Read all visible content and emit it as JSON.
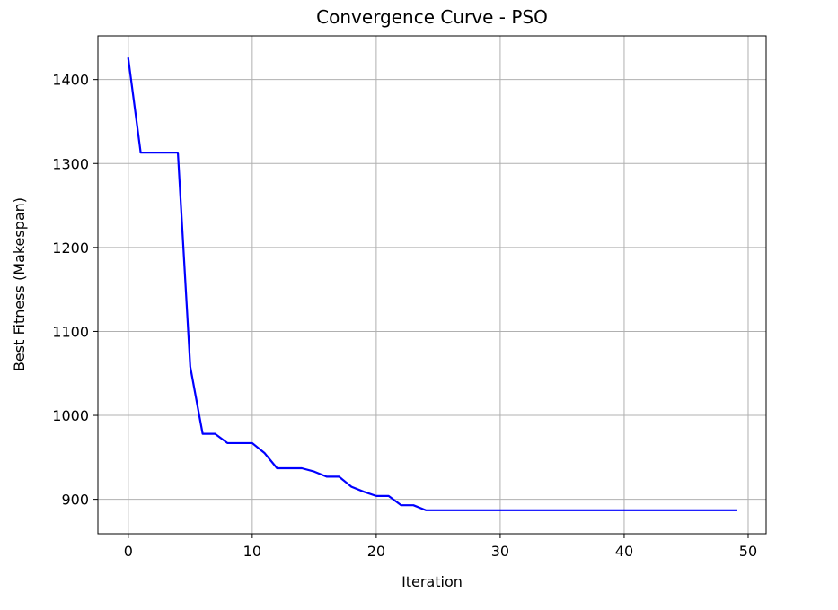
{
  "chart_data": {
    "type": "line",
    "title": "Convergence Curve - PSO",
    "xlabel": "Iteration",
    "ylabel": "Best Fitness (Makespan)",
    "xlim": [
      -2.45,
      51.45
    ],
    "ylim": [
      859,
      1452
    ],
    "xticks": [
      0,
      10,
      20,
      30,
      40,
      50
    ],
    "yticks": [
      900,
      1000,
      1100,
      1200,
      1300,
      1400
    ],
    "grid": true,
    "series": [
      {
        "color": "#0000ff",
        "x": [
          0,
          1,
          2,
          3,
          4,
          5,
          6,
          7,
          8,
          9,
          10,
          11,
          12,
          13,
          14,
          15,
          16,
          17,
          18,
          19,
          20,
          21,
          22,
          23,
          24,
          25,
          26,
          27,
          28,
          29,
          30,
          31,
          32,
          33,
          34,
          35,
          36,
          37,
          38,
          39,
          40,
          41,
          42,
          43,
          44,
          45,
          46,
          47,
          48,
          49
        ],
        "values": [
          1425,
          1313,
          1313,
          1313,
          1313,
          1058,
          978,
          978,
          967,
          967,
          967,
          955,
          937,
          937,
          937,
          933,
          927,
          927,
          915,
          909,
          904,
          904,
          893,
          893,
          887,
          887,
          887,
          887,
          887,
          887,
          887,
          887,
          887,
          887,
          887,
          887,
          887,
          887,
          887,
          887,
          887,
          887,
          887,
          887,
          887,
          887,
          887,
          887,
          887,
          887
        ]
      }
    ]
  }
}
